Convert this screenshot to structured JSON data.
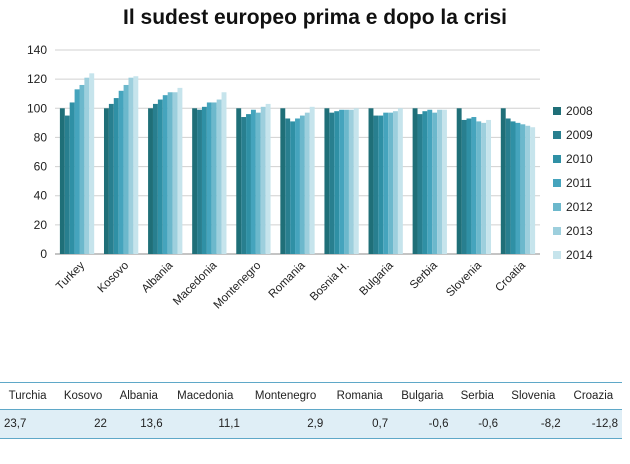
{
  "title": "Il sudest europeo prima e dopo la crisi",
  "chart_data": {
    "type": "bar",
    "categories": [
      "Turkey",
      "Kosovo",
      "Albania",
      "Macedonia",
      "Montenegro",
      "Romania",
      "Bosnia H.",
      "Bulgaria",
      "Serbia",
      "Slovenia",
      "Croatia"
    ],
    "ylim": [
      0,
      140
    ],
    "yticks": [
      0,
      20,
      40,
      60,
      80,
      100,
      120,
      140
    ],
    "grid": true,
    "legend_position": "right",
    "series": [
      {
        "name": "2008",
        "color": "#1f6f78",
        "values": [
          100,
          100,
          100,
          100,
          100,
          100,
          100,
          100,
          100,
          100,
          100
        ]
      },
      {
        "name": "2009",
        "color": "#287f8f",
        "values": [
          95,
          103,
          103,
          99,
          94,
          93,
          97,
          95,
          96,
          92,
          93
        ]
      },
      {
        "name": "2010",
        "color": "#2f90a5",
        "values": [
          104,
          107,
          106,
          101,
          96,
          91,
          98,
          95,
          98,
          93,
          91
        ]
      },
      {
        "name": "2011",
        "color": "#45a4bd",
        "values": [
          113,
          112,
          109,
          104,
          99,
          93,
          99,
          97,
          99,
          94,
          90
        ]
      },
      {
        "name": "2012",
        "color": "#6cb8cc",
        "values": [
          116,
          116,
          111,
          104,
          97,
          95,
          99,
          97,
          97,
          91,
          89
        ]
      },
      {
        "name": "2013",
        "color": "#9dcfdd",
        "values": [
          121,
          121,
          111,
          106,
          101,
          97,
          99,
          98,
          99,
          90,
          88
        ]
      },
      {
        "name": "2014",
        "color": "#c6e4ec",
        "values": [
          124,
          122,
          114,
          111,
          103,
          101,
          100,
          100,
          99,
          92,
          87
        ]
      }
    ]
  },
  "table": {
    "headers": [
      "Turchia",
      "Kosovo",
      "Albania",
      "Macedonia",
      "Montenegro",
      "Romania",
      "Bulgaria",
      "Serbia",
      "Slovenia",
      "Croazia"
    ],
    "values": [
      "23,7",
      "22",
      "13,6",
      "11,1",
      "2,9",
      "0,7",
      "-0,6",
      "-0,6",
      "-8,2",
      "-12,8"
    ]
  }
}
